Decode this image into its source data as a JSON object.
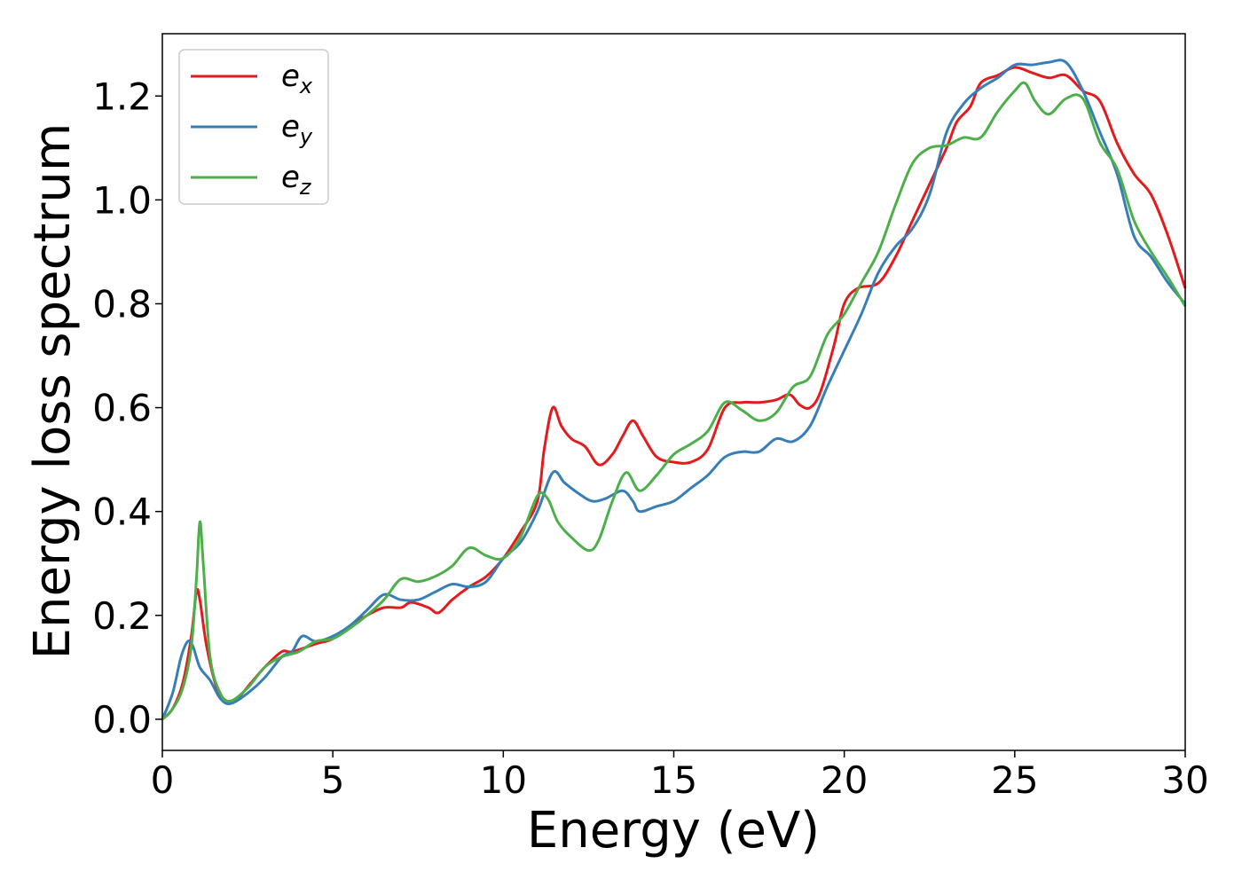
{
  "chart_data": {
    "type": "line",
    "title": "",
    "xlabel": "Energy (eV)",
    "ylabel": "Energy loss spectrum",
    "xlim": [
      0,
      30
    ],
    "ylim": [
      -0.06,
      1.32
    ],
    "xticks": [
      0,
      5,
      10,
      15,
      20,
      25,
      30
    ],
    "yticks": [
      0.0,
      0.2,
      0.4,
      0.6,
      0.8,
      1.0,
      1.2
    ],
    "xtick_labels": [
      "0",
      "5",
      "10",
      "15",
      "20",
      "25",
      "30"
    ],
    "ytick_labels": [
      "0.0",
      "0.2",
      "0.4",
      "0.6",
      "0.8",
      "1.0",
      "1.2"
    ],
    "grid": false,
    "legend_position": "top-left",
    "series": [
      {
        "name": "e_x",
        "label_base": "e",
        "label_sub": "x",
        "color": "#e41a1c",
        "points": [
          [
            0,
            0
          ],
          [
            0.3,
            0.02
          ],
          [
            0.6,
            0.07
          ],
          [
            0.85,
            0.16
          ],
          [
            1.0,
            0.245
          ],
          [
            1.1,
            0.23
          ],
          [
            1.3,
            0.14
          ],
          [
            1.6,
            0.06
          ],
          [
            1.9,
            0.035
          ],
          [
            2.2,
            0.04
          ],
          [
            2.6,
            0.07
          ],
          [
            3.0,
            0.1
          ],
          [
            3.5,
            0.13
          ],
          [
            3.8,
            0.13
          ],
          [
            4.5,
            0.145
          ],
          [
            5.0,
            0.155
          ],
          [
            5.5,
            0.18
          ],
          [
            6.0,
            0.2
          ],
          [
            6.5,
            0.215
          ],
          [
            7.0,
            0.215
          ],
          [
            7.3,
            0.225
          ],
          [
            7.8,
            0.215
          ],
          [
            8.1,
            0.205
          ],
          [
            8.5,
            0.23
          ],
          [
            9.0,
            0.255
          ],
          [
            9.5,
            0.275
          ],
          [
            10.0,
            0.31
          ],
          [
            10.5,
            0.36
          ],
          [
            11.0,
            0.42
          ],
          [
            11.2,
            0.52
          ],
          [
            11.45,
            0.6
          ],
          [
            11.7,
            0.565
          ],
          [
            12.0,
            0.54
          ],
          [
            12.4,
            0.525
          ],
          [
            12.8,
            0.49
          ],
          [
            13.2,
            0.51
          ],
          [
            13.5,
            0.545
          ],
          [
            13.8,
            0.575
          ],
          [
            14.1,
            0.545
          ],
          [
            14.5,
            0.505
          ],
          [
            15.0,
            0.495
          ],
          [
            15.5,
            0.495
          ],
          [
            16.0,
            0.52
          ],
          [
            16.5,
            0.6
          ],
          [
            17.0,
            0.61
          ],
          [
            17.5,
            0.61
          ],
          [
            18.0,
            0.615
          ],
          [
            18.4,
            0.625
          ],
          [
            18.7,
            0.605
          ],
          [
            19.0,
            0.6
          ],
          [
            19.3,
            0.63
          ],
          [
            19.7,
            0.72
          ],
          [
            20.0,
            0.8
          ],
          [
            20.4,
            0.83
          ],
          [
            21.0,
            0.84
          ],
          [
            21.5,
            0.89
          ],
          [
            22.0,
            0.96
          ],
          [
            22.5,
            1.03
          ],
          [
            23.0,
            1.1
          ],
          [
            23.3,
            1.15
          ],
          [
            23.7,
            1.18
          ],
          [
            24.0,
            1.225
          ],
          [
            24.5,
            1.24
          ],
          [
            25.0,
            1.255
          ],
          [
            25.5,
            1.245
          ],
          [
            26.0,
            1.235
          ],
          [
            26.5,
            1.24
          ],
          [
            27.0,
            1.21
          ],
          [
            27.5,
            1.19
          ],
          [
            28.0,
            1.11
          ],
          [
            28.5,
            1.05
          ],
          [
            29.0,
            1.01
          ],
          [
            29.5,
            0.93
          ],
          [
            30.0,
            0.83
          ]
        ]
      },
      {
        "name": "e_y",
        "label_base": "e",
        "label_sub": "y",
        "color": "#377eb8",
        "points": [
          [
            0,
            0
          ],
          [
            0.3,
            0.05
          ],
          [
            0.55,
            0.12
          ],
          [
            0.75,
            0.15
          ],
          [
            0.9,
            0.14
          ],
          [
            1.1,
            0.1
          ],
          [
            1.4,
            0.075
          ],
          [
            1.7,
            0.04
          ],
          [
            2.0,
            0.03
          ],
          [
            2.5,
            0.05
          ],
          [
            3.0,
            0.08
          ],
          [
            3.5,
            0.12
          ],
          [
            3.8,
            0.13
          ],
          [
            4.1,
            0.16
          ],
          [
            4.5,
            0.15
          ],
          [
            5.0,
            0.16
          ],
          [
            5.5,
            0.18
          ],
          [
            6.0,
            0.21
          ],
          [
            6.5,
            0.24
          ],
          [
            7.0,
            0.23
          ],
          [
            7.5,
            0.23
          ],
          [
            8.0,
            0.245
          ],
          [
            8.5,
            0.26
          ],
          [
            9.0,
            0.255
          ],
          [
            9.5,
            0.265
          ],
          [
            10.0,
            0.31
          ],
          [
            10.5,
            0.34
          ],
          [
            11.0,
            0.4
          ],
          [
            11.45,
            0.475
          ],
          [
            11.8,
            0.455
          ],
          [
            12.2,
            0.435
          ],
          [
            12.6,
            0.42
          ],
          [
            13.0,
            0.425
          ],
          [
            13.5,
            0.44
          ],
          [
            13.8,
            0.42
          ],
          [
            14.0,
            0.4
          ],
          [
            14.5,
            0.41
          ],
          [
            15.0,
            0.42
          ],
          [
            15.5,
            0.445
          ],
          [
            16.0,
            0.47
          ],
          [
            16.5,
            0.505
          ],
          [
            17.0,
            0.515
          ],
          [
            17.5,
            0.515
          ],
          [
            18.0,
            0.54
          ],
          [
            18.5,
            0.535
          ],
          [
            19.0,
            0.565
          ],
          [
            19.5,
            0.64
          ],
          [
            20.0,
            0.71
          ],
          [
            20.5,
            0.78
          ],
          [
            21.0,
            0.86
          ],
          [
            21.5,
            0.91
          ],
          [
            22.0,
            0.945
          ],
          [
            22.5,
            1.01
          ],
          [
            23.0,
            1.13
          ],
          [
            23.5,
            1.185
          ],
          [
            24.0,
            1.215
          ],
          [
            24.5,
            1.235
          ],
          [
            25.0,
            1.26
          ],
          [
            25.5,
            1.26
          ],
          [
            26.0,
            1.265
          ],
          [
            26.5,
            1.265
          ],
          [
            27.0,
            1.21
          ],
          [
            27.5,
            1.13
          ],
          [
            28.0,
            1.05
          ],
          [
            28.5,
            0.93
          ],
          [
            29.0,
            0.89
          ],
          [
            29.5,
            0.84
          ],
          [
            30.0,
            0.8
          ]
        ]
      },
      {
        "name": "e_z",
        "label_base": "e",
        "label_sub": "z",
        "color": "#4daf4a",
        "points": [
          [
            0,
            0
          ],
          [
            0.3,
            0.02
          ],
          [
            0.6,
            0.06
          ],
          [
            0.85,
            0.14
          ],
          [
            1.0,
            0.27
          ],
          [
            1.1,
            0.38
          ],
          [
            1.2,
            0.3
          ],
          [
            1.4,
            0.12
          ],
          [
            1.7,
            0.05
          ],
          [
            2.0,
            0.035
          ],
          [
            2.5,
            0.06
          ],
          [
            3.0,
            0.1
          ],
          [
            3.5,
            0.12
          ],
          [
            4.0,
            0.13
          ],
          [
            4.5,
            0.15
          ],
          [
            5.0,
            0.155
          ],
          [
            5.5,
            0.175
          ],
          [
            6.0,
            0.2
          ],
          [
            6.5,
            0.23
          ],
          [
            7.0,
            0.27
          ],
          [
            7.5,
            0.265
          ],
          [
            8.0,
            0.275
          ],
          [
            8.5,
            0.295
          ],
          [
            9.0,
            0.33
          ],
          [
            9.5,
            0.315
          ],
          [
            10.0,
            0.31
          ],
          [
            10.5,
            0.35
          ],
          [
            11.0,
            0.43
          ],
          [
            11.3,
            0.425
          ],
          [
            11.6,
            0.38
          ],
          [
            12.0,
            0.35
          ],
          [
            12.5,
            0.325
          ],
          [
            12.8,
            0.345
          ],
          [
            13.2,
            0.42
          ],
          [
            13.6,
            0.475
          ],
          [
            14.0,
            0.44
          ],
          [
            14.5,
            0.47
          ],
          [
            15.0,
            0.51
          ],
          [
            15.5,
            0.53
          ],
          [
            16.0,
            0.555
          ],
          [
            16.5,
            0.61
          ],
          [
            17.0,
            0.595
          ],
          [
            17.5,
            0.575
          ],
          [
            18.0,
            0.59
          ],
          [
            18.5,
            0.64
          ],
          [
            19.0,
            0.66
          ],
          [
            19.5,
            0.74
          ],
          [
            20.0,
            0.78
          ],
          [
            20.5,
            0.84
          ],
          [
            21.0,
            0.9
          ],
          [
            21.5,
            0.99
          ],
          [
            22.0,
            1.07
          ],
          [
            22.5,
            1.1
          ],
          [
            23.0,
            1.105
          ],
          [
            23.5,
            1.12
          ],
          [
            24.0,
            1.12
          ],
          [
            24.5,
            1.17
          ],
          [
            25.0,
            1.21
          ],
          [
            25.3,
            1.225
          ],
          [
            25.6,
            1.19
          ],
          [
            26.0,
            1.165
          ],
          [
            26.5,
            1.195
          ],
          [
            27.0,
            1.195
          ],
          [
            27.5,
            1.11
          ],
          [
            28.0,
            1.06
          ],
          [
            28.5,
            0.96
          ],
          [
            29.0,
            0.9
          ],
          [
            29.5,
            0.85
          ],
          [
            30.0,
            0.795
          ]
        ]
      }
    ]
  }
}
